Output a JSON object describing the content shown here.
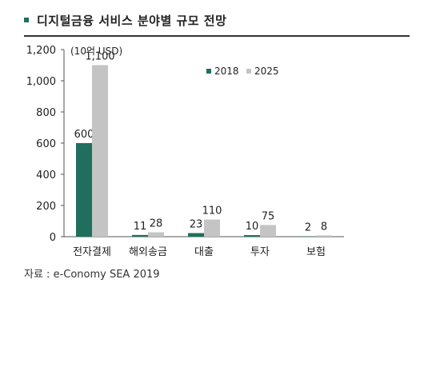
{
  "header": {
    "title": "디지털금융 서비스 분야별 규모 전망"
  },
  "chart_data": {
    "type": "bar",
    "unit_label": "(10억 USD)",
    "categories": [
      "전자결제",
      "해외송금",
      "대출",
      "투자",
      "보험"
    ],
    "series": [
      {
        "name": "2018",
        "values": [
          600,
          11,
          23,
          10,
          2
        ],
        "color": "#1f6e5e"
      },
      {
        "name": "2025",
        "values": [
          1100,
          28,
          110,
          75,
          8
        ],
        "color": "#c4c4c4"
      }
    ],
    "ylim": [
      0,
      1200
    ],
    "yticks": [
      0,
      200,
      400,
      600,
      800,
      1000,
      1200
    ],
    "ytick_labels": [
      "0",
      "200",
      "400",
      "600",
      "800",
      "1,000",
      "1,200"
    ],
    "data_labels": [
      [
        "600",
        "11",
        "23",
        "10",
        "2"
      ],
      [
        "1,100",
        "28",
        "110",
        "75",
        "8"
      ]
    ],
    "legend_position": "top-right",
    "grid": false
  },
  "footer": {
    "source": "자료 : e-Conomy SEA 2019"
  }
}
